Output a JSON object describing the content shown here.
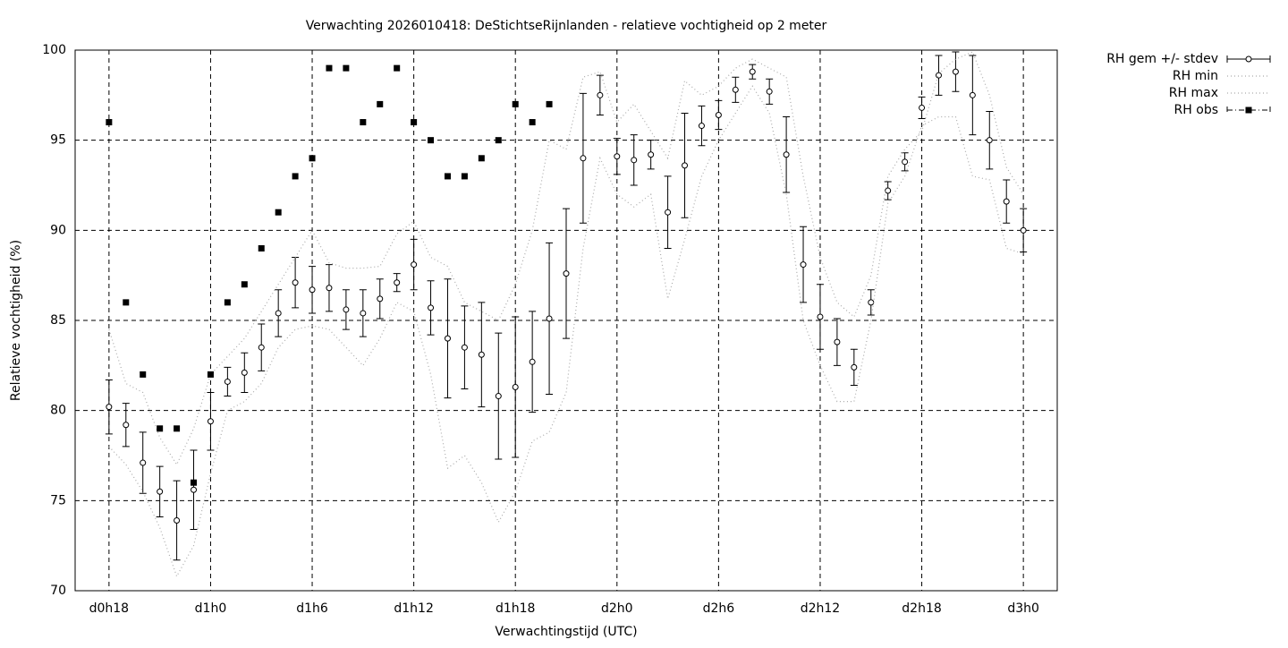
{
  "chart_data": {
    "type": "line",
    "title": "Verwachting 2026010418: DeStichtseRijnlanden - relatieve vochtigheid op 2 meter",
    "xlabel": "Verwachtingstijd (UTC)",
    "ylabel": "Relatieve vochtigheid (%)",
    "x": [
      18,
      19,
      20,
      21,
      22,
      23,
      24,
      25,
      26,
      27,
      28,
      29,
      30,
      31,
      32,
      33,
      34,
      35,
      36,
      37,
      38,
      39,
      40,
      41,
      42,
      43,
      44,
      45,
      46,
      47,
      48,
      49,
      50,
      51,
      52,
      53,
      54,
      55,
      56,
      57,
      58,
      59,
      60,
      61,
      62,
      63,
      64,
      65,
      66,
      67,
      68,
      69,
      70,
      71,
      72
    ],
    "series": [
      {
        "name": "RH gem +/- stdev",
        "color": "#000000",
        "style": "errorbars",
        "values": [
          80.2,
          79.2,
          77.1,
          75.5,
          73.9,
          75.6,
          79.4,
          81.6,
          82.1,
          83.5,
          85.4,
          87.1,
          86.7,
          86.8,
          85.6,
          85.4,
          86.2,
          87.1,
          88.1,
          85.7,
          84.0,
          83.5,
          83.1,
          80.8,
          81.3,
          82.7,
          85.1,
          87.6,
          94.0,
          97.5,
          94.1,
          93.9,
          94.2,
          91.0,
          93.6,
          95.8,
          96.4,
          97.8,
          98.8,
          97.7,
          94.2,
          88.1,
          85.2,
          83.8,
          82.4,
          86.0,
          92.2,
          93.8,
          96.8,
          98.6,
          98.8,
          97.5,
          95.0,
          91.6,
          90.0
        ],
        "stdev": [
          1.5,
          1.2,
          1.7,
          1.4,
          2.2,
          2.2,
          1.6,
          0.8,
          1.1,
          1.3,
          1.3,
          1.4,
          1.3,
          1.3,
          1.1,
          1.3,
          1.1,
          0.5,
          1.4,
          1.5,
          3.3,
          2.3,
          2.9,
          3.5,
          3.9,
          2.8,
          4.2,
          3.6,
          3.6,
          1.1,
          1.0,
          1.4,
          0.8,
          2.0,
          2.9,
          1.1,
          0.8,
          0.7,
          0.4,
          0.7,
          2.1,
          2.1,
          1.8,
          1.3,
          1.0,
          0.7,
          0.5,
          0.5,
          0.6,
          1.1,
          1.1,
          2.2,
          1.6,
          1.2,
          1.2
        ]
      },
      {
        "name": "RH min",
        "color": "#aaaaaa",
        "style": "dotted",
        "values": [
          78.0,
          77.0,
          75.5,
          73.5,
          70.8,
          72.5,
          76.5,
          80.0,
          80.5,
          81.5,
          83.5,
          84.5,
          84.7,
          84.5,
          83.5,
          82.5,
          84.0,
          86.0,
          85.5,
          82.0,
          76.8,
          77.5,
          76.0,
          73.8,
          75.5,
          78.3,
          78.8,
          81.0,
          89.0,
          94.0,
          92.0,
          91.3,
          92.0,
          86.2,
          89.5,
          93.0,
          95.0,
          96.5,
          98.0,
          96.5,
          92.0,
          85.0,
          82.5,
          80.5,
          80.5,
          85.0,
          91.5,
          93.0,
          95.8,
          96.3,
          96.3,
          93.0,
          92.8,
          89.0,
          88.7
        ]
      },
      {
        "name": "RH max",
        "color": "#aaaaaa",
        "style": "dotted",
        "values": [
          84.5,
          81.5,
          81.0,
          78.5,
          77.0,
          79.0,
          82.0,
          83.0,
          84.0,
          85.5,
          87.0,
          88.5,
          90.0,
          88.2,
          87.9,
          87.9,
          88.0,
          89.8,
          90.5,
          88.5,
          88.0,
          86.0,
          85.5,
          85.0,
          87.0,
          90.0,
          95.0,
          94.5,
          98.5,
          98.8,
          96.0,
          97.0,
          95.5,
          94.0,
          98.3,
          97.5,
          98.0,
          99.0,
          99.5,
          99.0,
          98.5,
          93.0,
          88.5,
          86.0,
          85.2,
          87.5,
          93.0,
          94.5,
          95.5,
          98.7,
          99.5,
          99.9,
          97.5,
          93.5,
          92.0
        ]
      },
      {
        "name": "RH obs",
        "color": "#000000",
        "style": "points",
        "values": [
          96,
          86,
          82,
          79,
          79,
          76,
          82,
          86,
          87,
          89,
          91,
          93,
          94,
          99,
          99,
          96,
          97,
          99,
          96,
          95,
          93,
          93,
          94,
          95,
          97,
          96,
          97,
          null,
          null,
          null,
          null,
          null,
          null,
          null,
          null,
          null,
          null,
          null,
          null,
          null,
          null,
          null,
          null,
          null,
          null,
          null,
          null,
          null,
          null,
          null,
          null,
          null,
          null,
          null,
          null
        ]
      }
    ],
    "xlim": [
      16,
      74
    ],
    "xticks": [
      {
        "value": 18,
        "label": "d0h18"
      },
      {
        "value": 24,
        "label": "d1h0"
      },
      {
        "value": 30,
        "label": "d1h6"
      },
      {
        "value": 36,
        "label": "d1h12"
      },
      {
        "value": 42,
        "label": "d1h18"
      },
      {
        "value": 48,
        "label": "d2h0"
      },
      {
        "value": 54,
        "label": "d2h6"
      },
      {
        "value": 60,
        "label": "d2h12"
      },
      {
        "value": 66,
        "label": "d2h18"
      },
      {
        "value": 72,
        "label": "d3h0"
      }
    ],
    "ylim": [
      70,
      100
    ],
    "yticks": [
      70,
      75,
      80,
      85,
      90,
      95,
      100
    ],
    "grid": true,
    "legend": "outside-top-right"
  }
}
